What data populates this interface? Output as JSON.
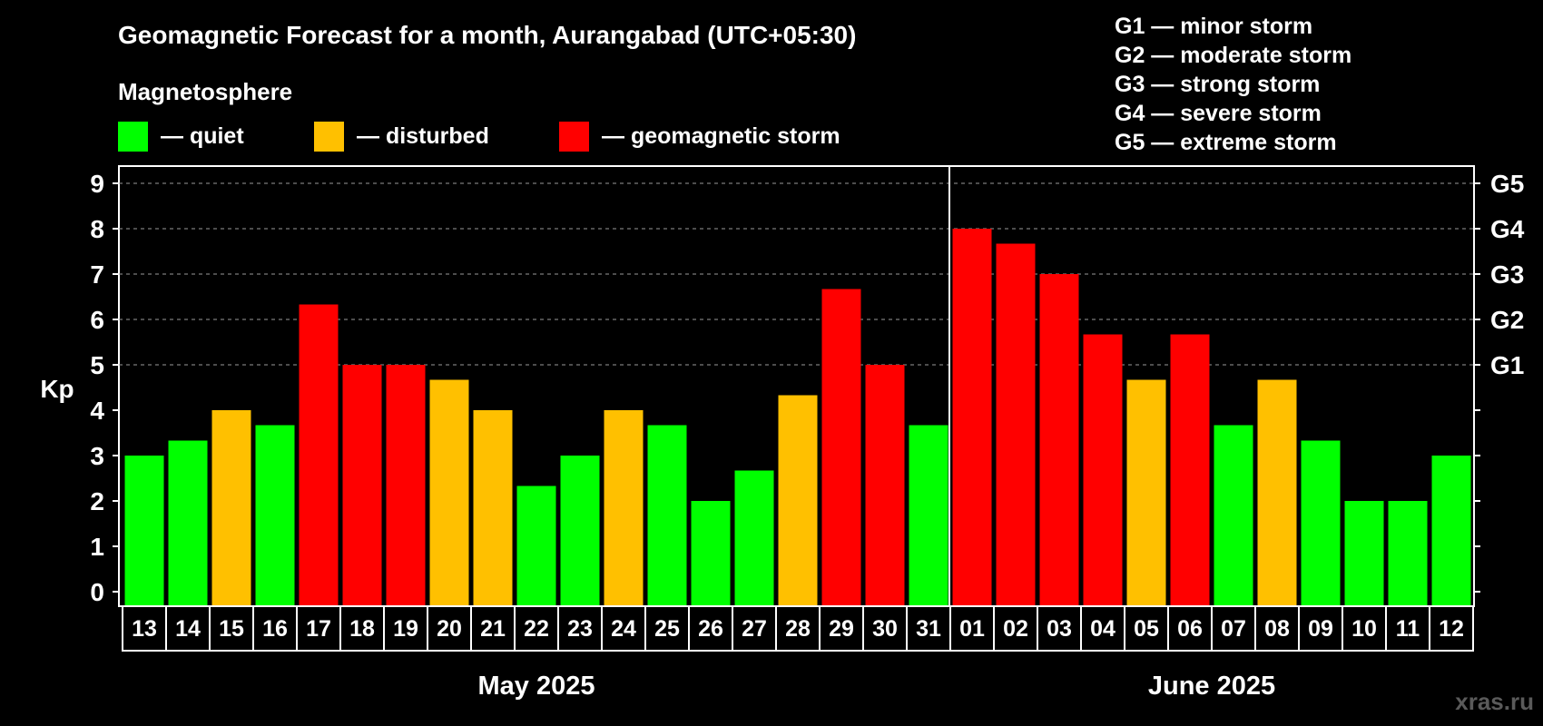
{
  "chart_data": {
    "type": "bar",
    "title": "Geomagnetic Forecast for a month, Aurangabad (UTC+05:30)",
    "legend_title": "Magnetosphere",
    "legend": [
      {
        "label": "— quiet",
        "color": "#00ff00"
      },
      {
        "label": "— disturbed",
        "color": "#ffc000"
      },
      {
        "label": "— geomagnetic storm",
        "color": "#ff0000"
      }
    ],
    "storm_scale": [
      "G1 — minor storm",
      "G2 — moderate storm",
      "G3 — strong storm",
      "G4 — severe storm",
      "G5 — extreme storm"
    ],
    "ylabel": "Kp",
    "ylim": [
      0,
      9
    ],
    "yticks": [
      "0",
      "1",
      "2",
      "3",
      "4",
      "5",
      "6",
      "7",
      "8",
      "9"
    ],
    "right_labels": [
      {
        "value": 5,
        "label": "G1"
      },
      {
        "value": 6,
        "label": "G2"
      },
      {
        "value": 7,
        "label": "G3"
      },
      {
        "value": 8,
        "label": "G4"
      },
      {
        "value": 9,
        "label": "G5"
      }
    ],
    "gridlines_at": [
      5,
      6,
      7,
      8,
      9
    ],
    "categories": [
      "13",
      "14",
      "15",
      "16",
      "17",
      "18",
      "19",
      "20",
      "21",
      "22",
      "23",
      "24",
      "25",
      "26",
      "27",
      "28",
      "29",
      "30",
      "31",
      "01",
      "02",
      "03",
      "04",
      "05",
      "06",
      "07",
      "08",
      "09",
      "10",
      "11",
      "12"
    ],
    "values": [
      3,
      3.33,
      4,
      3.67,
      6.33,
      5,
      5,
      4.67,
      4,
      2.33,
      3,
      4,
      3.67,
      2,
      2.67,
      4.33,
      6.67,
      5,
      3.67,
      8,
      7.67,
      7,
      5.67,
      4.67,
      5.67,
      3.67,
      4.67,
      3.33,
      2,
      2,
      3
    ],
    "status": [
      "quiet",
      "quiet",
      "disturbed",
      "quiet",
      "storm",
      "storm",
      "storm",
      "disturbed",
      "disturbed",
      "quiet",
      "quiet",
      "disturbed",
      "quiet",
      "quiet",
      "quiet",
      "disturbed",
      "storm",
      "storm",
      "quiet",
      "storm",
      "storm",
      "storm",
      "storm",
      "disturbed",
      "storm",
      "quiet",
      "disturbed",
      "quiet",
      "quiet",
      "quiet",
      "quiet"
    ],
    "colors": {
      "quiet": "#00ff00",
      "disturbed": "#ffc000",
      "storm": "#ff0000"
    },
    "months": [
      {
        "label": "May 2025",
        "count": 19
      },
      {
        "label": "June 2025",
        "count": 12
      }
    ]
  },
  "watermark": "xras.ru"
}
